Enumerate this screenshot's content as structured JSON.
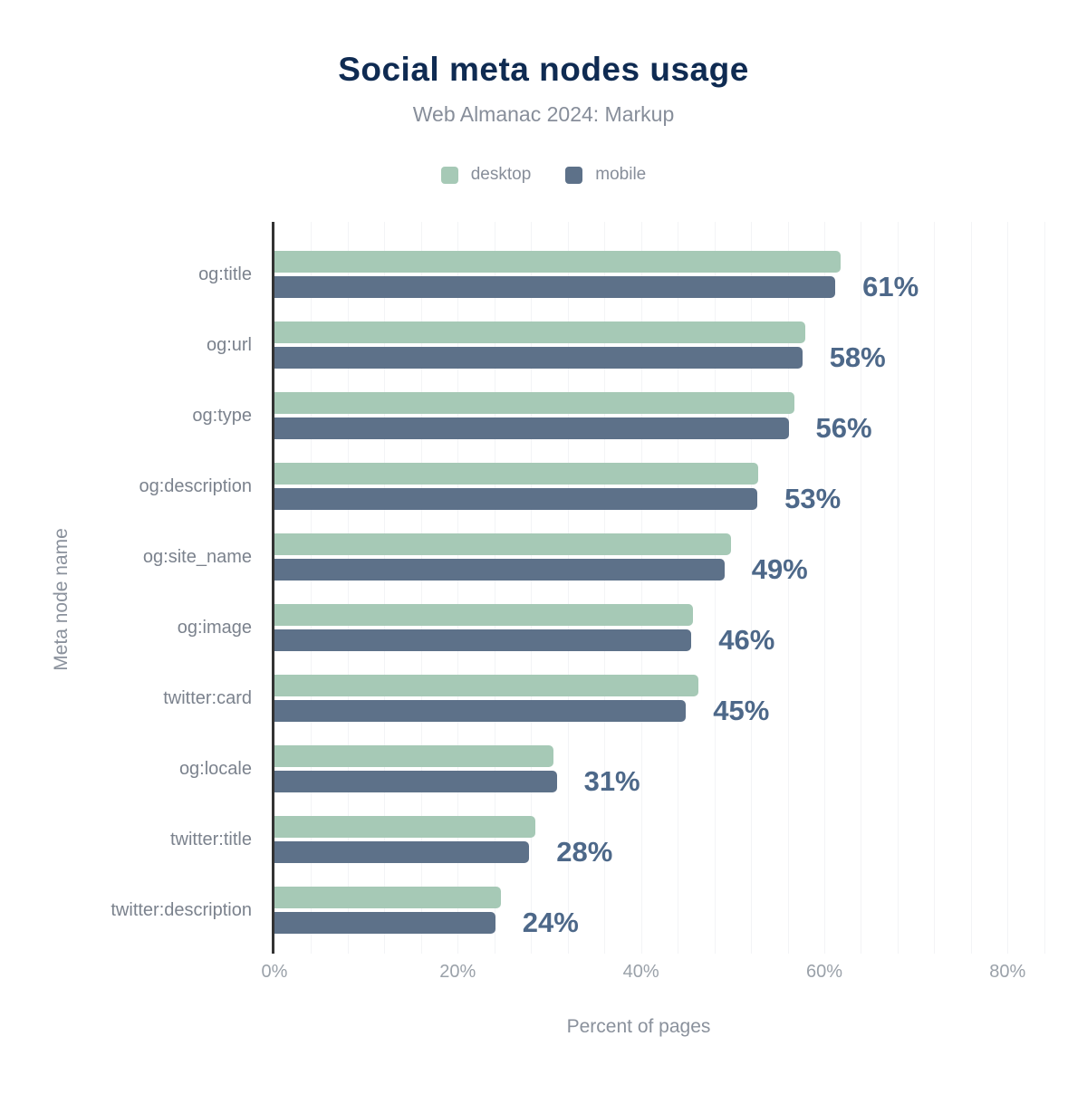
{
  "chart_data": {
    "type": "bar",
    "orientation": "horizontal",
    "title": "Social meta nodes usage",
    "subtitle": "Web Almanac 2024: Markup",
    "xlabel": "Percent of pages",
    "ylabel": "Meta node name",
    "categories": [
      "og:title",
      "og:url",
      "og:type",
      "og:description",
      "og:site_name",
      "og:image",
      "twitter:card",
      "og:locale",
      "twitter:title",
      "twitter:description"
    ],
    "series": [
      {
        "name": "desktop",
        "color": "#a6c9b6",
        "values": [
          61.8,
          57.9,
          56.7,
          52.8,
          49.8,
          45.7,
          46.3,
          30.4,
          28.5,
          24.7
        ]
      },
      {
        "name": "mobile",
        "color": "#5d7189",
        "values": [
          61.2,
          57.6,
          56.1,
          52.7,
          49.1,
          45.5,
          44.9,
          30.8,
          27.8,
          24.1
        ]
      }
    ],
    "value_labels": [
      "61%",
      "58%",
      "56%",
      "53%",
      "49%",
      "46%",
      "45%",
      "31%",
      "28%",
      "24%"
    ],
    "value_labels_shown_for": "mobile",
    "x_ticks": [
      {
        "value": 0,
        "label": "0%"
      },
      {
        "value": 20,
        "label": "20%"
      },
      {
        "value": 40,
        "label": "40%"
      },
      {
        "value": 60,
        "label": "60%"
      },
      {
        "value": 80,
        "label": "80%"
      }
    ],
    "xlim": [
      0,
      86
    ],
    "grid": {
      "vertical_minor_step": 4,
      "color": "#f3f4f6"
    },
    "legend_position": "top",
    "colors": {
      "title": "#0f2b52",
      "subtitle": "#878e9a",
      "legend_label": "#878e9a",
      "category_label": "#7b828d",
      "tick_label": "#9aa1a9",
      "axis_title": "#8a919c",
      "value_label": "#4d6889",
      "axis_line": "#333333"
    }
  }
}
